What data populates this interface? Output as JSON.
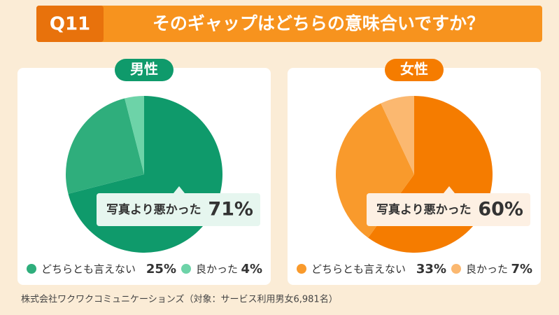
{
  "header": {
    "label": "Q11",
    "title": "そのギャップはどちらの意味合いですか？"
  },
  "chart_data": [
    {
      "type": "pie",
      "title": "男性",
      "categories": [
        "写真より悪かった",
        "どちらとも言えない",
        "良かった"
      ],
      "values": [
        71,
        25,
        4
      ],
      "value_labels": [
        "71%",
        "25%",
        "4%"
      ],
      "colors": [
        "#0f9a6b",
        "#2fae7c",
        "#6dd3a8"
      ],
      "accent": "#0f9a6b",
      "callout_bg": "#e6f6ef"
    },
    {
      "type": "pie",
      "title": "女性",
      "categories": [
        "写真より悪かった",
        "どちらとも言えない",
        "良かった"
      ],
      "values": [
        60,
        33,
        7
      ],
      "value_labels": [
        "60%",
        "33%",
        "7%"
      ],
      "colors": [
        "#f57c00",
        "#f99a2c",
        "#fbb870"
      ],
      "accent": "#f57c00",
      "callout_bg": "#fdf0e3"
    }
  ],
  "footnote": "株式会社ワクワクコミュニケーションズ（対象：サービス利用男女6,981名）"
}
